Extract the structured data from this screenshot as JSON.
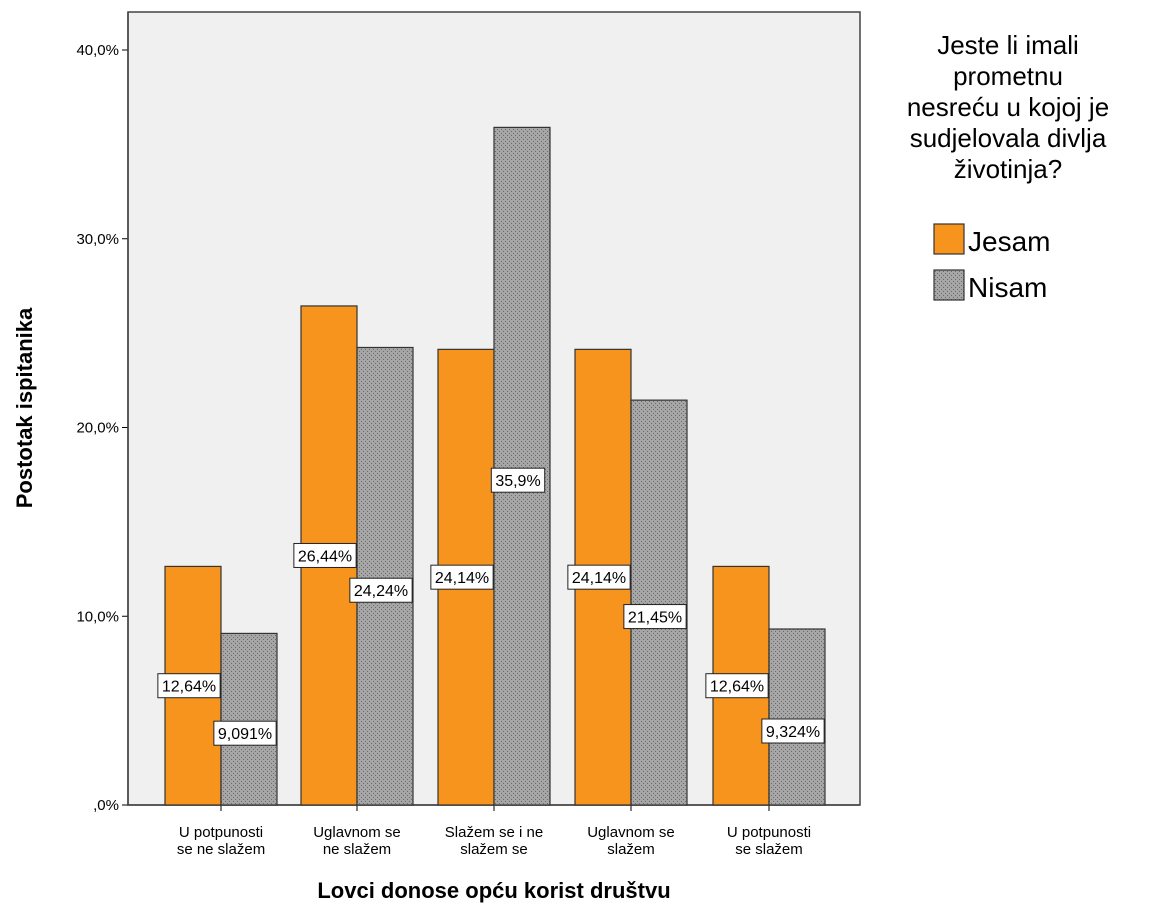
{
  "chart_data": {
    "type": "bar",
    "xlabel": "Lovci donose opću korist društvu",
    "ylabel": "Postotak ispitanika",
    "ylim": [
      0,
      40
    ],
    "yticks": [
      ",0%",
      "10,0%",
      "20,0%",
      "30,0%",
      "40,0%"
    ],
    "categories": [
      [
        "U potpunosti",
        "se ne slažem"
      ],
      [
        "Uglavnom se",
        "ne slažem"
      ],
      [
        "Slažem se i ne",
        "slažem se"
      ],
      [
        "Uglavnom se",
        "slažem"
      ],
      [
        "U potpunosti",
        "se slažem"
      ]
    ],
    "legend": {
      "title_lines": [
        "Jeste li imali",
        "prometnu",
        "nesreću u kojoj je",
        "sudjelovala divlja",
        "životinja?"
      ],
      "position": "right"
    },
    "series": [
      {
        "name": "Jesam",
        "color": "#f7941d",
        "pattern": "solid",
        "values": [
          12.64,
          26.44,
          24.14,
          24.14,
          12.64
        ],
        "labels": [
          "12,64%",
          "26,44%",
          "24,14%",
          "24,14%",
          "12,64%"
        ]
      },
      {
        "name": "Nisam",
        "color": "#a6a6a6",
        "pattern": "dotted",
        "values": [
          9.091,
          24.24,
          35.9,
          21.45,
          9.324
        ],
        "labels": [
          "9,091%",
          "24,24%",
          "35,9%",
          "21,45%",
          "9,324%"
        ]
      }
    ],
    "grid": false,
    "plot_background": "#f0f0f0"
  }
}
